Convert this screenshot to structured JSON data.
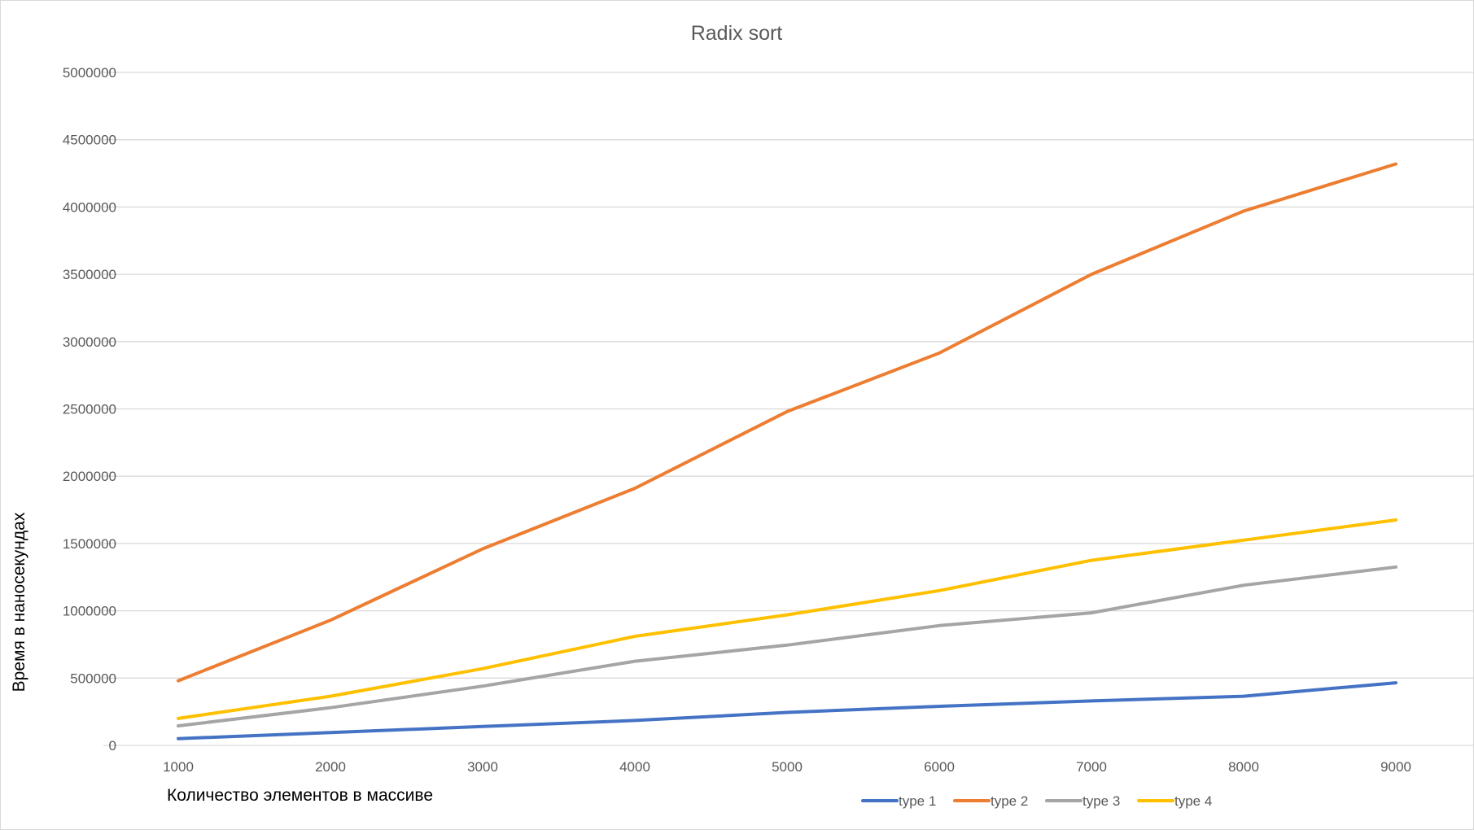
{
  "chart_data": {
    "type": "line",
    "title": "Radix sort",
    "xlabel": "Количество элементов в массиве",
    "ylabel": "Время в наносекундах",
    "categories": [
      "1000",
      "2000",
      "3000",
      "4000",
      "5000",
      "6000",
      "7000",
      "8000",
      "9000"
    ],
    "ylim": [
      0,
      5000000
    ],
    "yticks": [
      "0",
      "500000",
      "1000000",
      "1500000",
      "2000000",
      "2500000",
      "3000000",
      "3500000",
      "4000000",
      "4500000",
      "5000000"
    ],
    "grid": true,
    "legend_position": "bottom-right",
    "series": [
      {
        "name": "type 1",
        "color": "#4472C4",
        "values": [
          50000,
          95000,
          140000,
          185000,
          245000,
          290000,
          330000,
          365000,
          465000
        ]
      },
      {
        "name": "type 2",
        "color": "#ED7D31",
        "values": [
          480000,
          930000,
          1460000,
          1910000,
          2480000,
          2915000,
          3500000,
          3970000,
          4320000
        ]
      },
      {
        "name": "type 3",
        "color": "#A5A5A5",
        "values": [
          145000,
          280000,
          440000,
          625000,
          745000,
          890000,
          985000,
          1190000,
          1325000
        ]
      },
      {
        "name": "type 4",
        "color": "#FFC000",
        "values": [
          200000,
          365000,
          570000,
          810000,
          970000,
          1150000,
          1375000,
          1525000,
          1675000
        ]
      }
    ]
  }
}
